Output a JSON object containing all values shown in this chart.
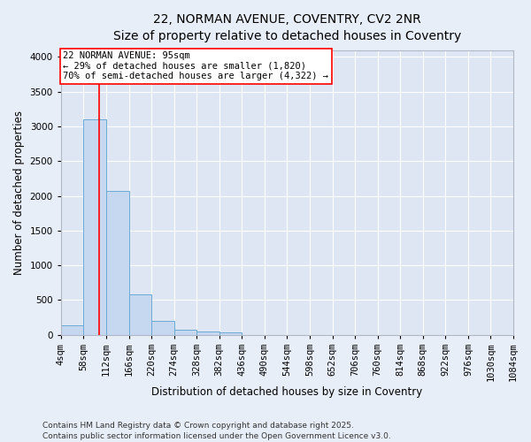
{
  "title_line1": "22, NORMAN AVENUE, COVENTRY, CV2 2NR",
  "title_line2": "Size of property relative to detached houses in Coventry",
  "xlabel": "Distribution of detached houses by size in Coventry",
  "ylabel": "Number of detached properties",
  "bins": [
    4,
    58,
    112,
    166,
    220,
    274,
    328,
    382,
    436,
    490,
    544,
    598,
    652,
    706,
    760,
    814,
    868,
    922,
    976,
    1030,
    1084
  ],
  "bar_heights": [
    140,
    3100,
    2070,
    580,
    200,
    70,
    45,
    30,
    0,
    0,
    0,
    0,
    0,
    0,
    0,
    0,
    0,
    0,
    0,
    0
  ],
  "bar_color": "#c5d8f0",
  "bar_edge_color": "#6aaad4",
  "subject_size": 95,
  "subject_label": "22 NORMAN AVENUE: 95sqm",
  "annotation_line2": "← 29% of detached houses are smaller (1,820)",
  "annotation_line3": "70% of semi-detached houses are larger (4,322) →",
  "vline_color": "red",
  "annotation_box_edge": "red",
  "annotation_box_face": "white",
  "ylim": [
    0,
    4100
  ],
  "yticks": [
    0,
    500,
    1000,
    1500,
    2000,
    2500,
    3000,
    3500,
    4000
  ],
  "footer_line1": "Contains HM Land Registry data © Crown copyright and database right 2025.",
  "footer_line2": "Contains public sector information licensed under the Open Government Licence v3.0.",
  "background_color": "#e8eef7",
  "plot_bg_color": "#dde6f2",
  "grid_color": "white",
  "title_fontsize": 10,
  "subtitle_fontsize": 9,
  "axis_label_fontsize": 8.5,
  "tick_fontsize": 7.5,
  "footer_fontsize": 6.5,
  "annotation_fontsize": 7.5
}
